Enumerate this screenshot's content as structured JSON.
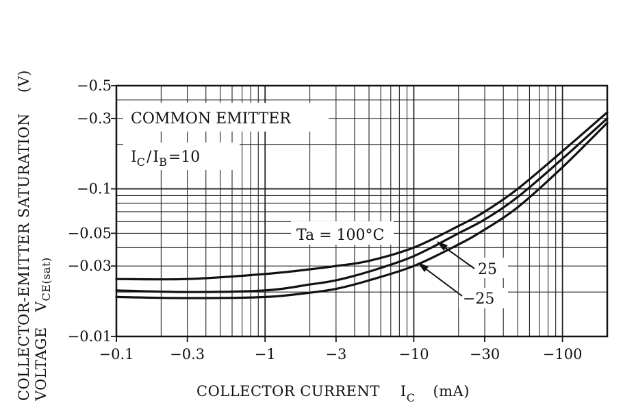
{
  "chart_data": {
    "type": "line",
    "title": "",
    "xscale": "log",
    "yscale": "log",
    "xlim": [
      -0.1,
      -200
    ],
    "ylim": [
      -0.01,
      -0.5
    ],
    "xticks": [
      {
        "v": 0.1,
        "label": "−0.1"
      },
      {
        "v": 0.3,
        "label": "−0.3"
      },
      {
        "v": 1,
        "label": "−1"
      },
      {
        "v": 3,
        "label": "−3"
      },
      {
        "v": 10,
        "label": "−10"
      },
      {
        "v": 30,
        "label": "−30"
      },
      {
        "v": 100,
        "label": "−100"
      }
    ],
    "yticks": [
      {
        "v": 0.01,
        "label": "−0.01"
      },
      {
        "v": 0.03,
        "label": "−0.03"
      },
      {
        "v": 0.05,
        "label": "−0.05"
      },
      {
        "v": 0.1,
        "label": "−0.1"
      },
      {
        "v": 0.3,
        "label": "−0.3"
      },
      {
        "v": 0.5,
        "label": "−0.5"
      }
    ],
    "xlabel": {
      "main": "COLLECTOR CURRENT",
      "sym": "I",
      "sub": "C",
      "unit": "(mA)"
    },
    "ylabel": {
      "line1": "COLLECTOR-EMITTER SATURATION",
      "line1_unit": "(V)",
      "line2": "VOLTAGE",
      "line2_sym": "V",
      "line2_sub": "CE(sat)"
    },
    "annotations": {
      "mode": "COMMON EMITTER",
      "cond_sym1": "I",
      "cond_sub1": "C",
      "cond_mid": "/",
      "cond_sym2": "I",
      "cond_sub2": "B",
      "cond_val": "=10"
    },
    "series": [
      {
        "name": "Ta=100°C",
        "label": "Ta = 100°C",
        "x": [
          -0.1,
          -0.3,
          -1,
          -2,
          -3,
          -5,
          -10,
          -20,
          -30,
          -50,
          -100,
          -200
        ],
        "y": [
          -0.0245,
          -0.0245,
          -0.0265,
          -0.0285,
          -0.03,
          -0.0325,
          -0.04,
          -0.056,
          -0.07,
          -0.1,
          -0.18,
          -0.33
        ]
      },
      {
        "name": "25",
        "label": "25",
        "x": [
          -0.1,
          -0.3,
          -1,
          -2,
          -3,
          -5,
          -10,
          -20,
          -30,
          -50,
          -100,
          -200
        ],
        "y": [
          -0.0205,
          -0.02,
          -0.0205,
          -0.0225,
          -0.024,
          -0.0275,
          -0.035,
          -0.05,
          -0.062,
          -0.088,
          -0.16,
          -0.3
        ]
      },
      {
        "name": "−25",
        "label": "−25",
        "x": [
          -0.1,
          -0.3,
          -1,
          -2,
          -3,
          -5,
          -10,
          -20,
          -30,
          -50,
          -100,
          -200
        ],
        "y": [
          -0.0185,
          -0.0182,
          -0.0185,
          -0.0198,
          -0.021,
          -0.024,
          -0.03,
          -0.042,
          -0.053,
          -0.075,
          -0.14,
          -0.28
        ]
      }
    ]
  }
}
